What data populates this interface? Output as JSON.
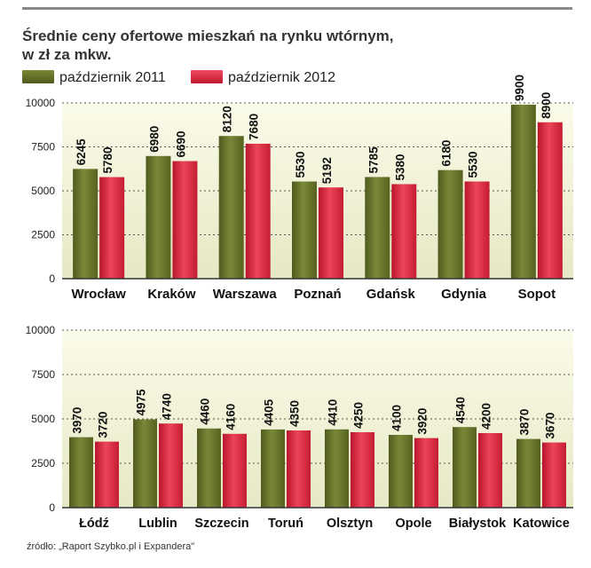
{
  "title_line1": "Średnie ceny ofertowe mieszkań na rynku wtórnym,",
  "title_line2": "w zł za mkw.",
  "legend": [
    "październik 2011",
    "październik 2012"
  ],
  "colors": {
    "series2011": "#5e6b24",
    "series2012": "#d8243c"
  },
  "source": "źródło: „Raport Szybko.pl i Expandera\"",
  "chart_data": [
    {
      "type": "bar",
      "categories": [
        "Wrocław",
        "Kraków",
        "Warszawa",
        "Poznań",
        "Gdańsk",
        "Gdynia",
        "Sopot"
      ],
      "series": [
        {
          "name": "październik 2011",
          "values": [
            6245,
            6980,
            8120,
            5530,
            5785,
            6180,
            9900
          ]
        },
        {
          "name": "październik 2012",
          "values": [
            5780,
            6690,
            7680,
            5192,
            5380,
            5530,
            8900
          ]
        }
      ],
      "yticks": [
        0,
        2500,
        5000,
        7500,
        10000
      ],
      "ylim": [
        0,
        10000
      ],
      "grid": true
    },
    {
      "type": "bar",
      "categories": [
        "Łódź",
        "Lublin",
        "Szczecin",
        "Toruń",
        "Olsztyn",
        "Opole",
        "Białystok",
        "Katowice"
      ],
      "series": [
        {
          "name": "październik 2011",
          "values": [
            3970,
            4975,
            4460,
            4405,
            4410,
            4100,
            4540,
            3870
          ]
        },
        {
          "name": "październik 2012",
          "values": [
            3720,
            4740,
            4160,
            4350,
            4250,
            3920,
            4200,
            3670
          ]
        }
      ],
      "yticks": [
        0,
        2500,
        5000,
        7500,
        10000
      ],
      "ylim": [
        0,
        10000
      ],
      "grid": true
    }
  ]
}
